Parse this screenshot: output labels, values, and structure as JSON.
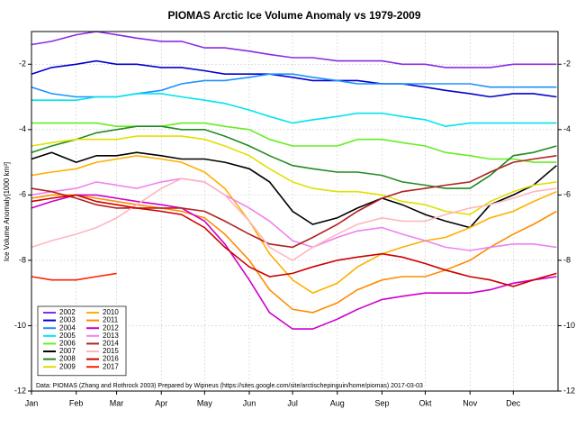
{
  "chart_data": {
    "type": "line",
    "title": "PIOMAS Arctic Ice Volume Anomaly vs 1979-2009",
    "y_label": "Ice Volume Anomaly[1000 km³]",
    "annotation": "Data: PIOMAS (Zhang and Rothrock 2003) Prepared by Wipneus (https://sites.google.com/site/arctischepinguin/home/piomas)   2017-03-03",
    "x": [
      1,
      15,
      32,
      46,
      60,
      74,
      91,
      105,
      121,
      135,
      152,
      166,
      182,
      196,
      213,
      227,
      244,
      258,
      274,
      288,
      305,
      319,
      335,
      349,
      365
    ],
    "xlim": [
      1,
      366
    ],
    "xticks": [
      {
        "value": 1,
        "label": "Jan"
      },
      {
        "value": 32,
        "label": "Feb"
      },
      {
        "value": 60,
        "label": "Mar"
      },
      {
        "value": 91,
        "label": "Apr"
      },
      {
        "value": 121,
        "label": "May"
      },
      {
        "value": 152,
        "label": "Jun"
      },
      {
        "value": 182,
        "label": "Jul"
      },
      {
        "value": 213,
        "label": "Aug"
      },
      {
        "value": 244,
        "label": "Sep"
      },
      {
        "value": 274,
        "label": "Okt"
      },
      {
        "value": 305,
        "label": "Nov"
      },
      {
        "value": 335,
        "label": "Dec"
      }
    ],
    "ylim": [
      -12,
      -1
    ],
    "yticks": [
      -12,
      -10,
      -8,
      -6,
      -4,
      -2
    ],
    "grid": true,
    "legend": "lower left",
    "series": [
      {
        "name": "2002",
        "color": "#8a2be2",
        "values": [
          -1.4,
          -1.3,
          -1.1,
          -1.0,
          -1.1,
          -1.2,
          -1.3,
          -1.3,
          -1.5,
          -1.5,
          -1.6,
          -1.7,
          -1.8,
          -1.8,
          -1.9,
          -1.9,
          -1.9,
          -2.0,
          -2.0,
          -2.1,
          -2.1,
          -2.1,
          -2.0,
          -2.0,
          -2.0
        ]
      },
      {
        "name": "2003",
        "color": "#0000cd",
        "values": [
          -2.3,
          -2.1,
          -2.0,
          -1.9,
          -2.0,
          -2.0,
          -2.1,
          -2.1,
          -2.2,
          -2.3,
          -2.3,
          -2.3,
          -2.4,
          -2.5,
          -2.5,
          -2.5,
          -2.6,
          -2.6,
          -2.7,
          -2.8,
          -2.9,
          -3.0,
          -2.9,
          -2.9,
          -3.0
        ]
      },
      {
        "name": "2004",
        "color": "#1e90ff",
        "values": [
          -2.7,
          -2.9,
          -3.0,
          -3.0,
          -3.0,
          -2.9,
          -2.8,
          -2.6,
          -2.5,
          -2.5,
          -2.4,
          -2.3,
          -2.3,
          -2.4,
          -2.5,
          -2.6,
          -2.6,
          -2.6,
          -2.6,
          -2.6,
          -2.6,
          -2.7,
          -2.7,
          -2.7,
          -2.7
        ]
      },
      {
        "name": "2005",
        "color": "#00e5ee",
        "values": [
          -3.1,
          -3.1,
          -3.1,
          -3.0,
          -3.0,
          -2.9,
          -2.9,
          -3.0,
          -3.1,
          -3.2,
          -3.4,
          -3.6,
          -3.8,
          -3.7,
          -3.6,
          -3.5,
          -3.5,
          -3.6,
          -3.7,
          -3.9,
          -3.8,
          -3.8,
          -3.8,
          -3.8,
          -3.8
        ]
      },
      {
        "name": "2006",
        "color": "#66ee22",
        "values": [
          -3.8,
          -3.8,
          -3.8,
          -3.8,
          -3.9,
          -3.9,
          -3.9,
          -3.8,
          -3.8,
          -3.9,
          -4.0,
          -4.3,
          -4.5,
          -4.5,
          -4.5,
          -4.3,
          -4.3,
          -4.4,
          -4.5,
          -4.7,
          -4.8,
          -4.9,
          -4.9,
          -5.0,
          -5.0
        ]
      },
      {
        "name": "2007",
        "color": "#000000",
        "values": [
          -4.9,
          -4.7,
          -5.0,
          -4.8,
          -4.8,
          -4.7,
          -4.8,
          -4.9,
          -4.9,
          -5.0,
          -5.2,
          -5.6,
          -6.5,
          -6.9,
          -6.7,
          -6.4,
          -6.1,
          -6.3,
          -6.6,
          -6.8,
          -7.0,
          -6.3,
          -6.0,
          -5.7,
          -5.1
        ]
      },
      {
        "name": "2008",
        "color": "#228b22",
        "values": [
          -4.7,
          -4.5,
          -4.3,
          -4.1,
          -4.0,
          -3.9,
          -3.9,
          -4.0,
          -4.0,
          -4.2,
          -4.5,
          -4.8,
          -5.1,
          -5.2,
          -5.3,
          -5.3,
          -5.4,
          -5.6,
          -5.7,
          -5.8,
          -5.8,
          -5.4,
          -4.8,
          -4.7,
          -4.5
        ]
      },
      {
        "name": "2009",
        "color": "#e0e000",
        "values": [
          -4.5,
          -4.4,
          -4.3,
          -4.3,
          -4.3,
          -4.2,
          -4.2,
          -4.2,
          -4.3,
          -4.5,
          -4.8,
          -5.2,
          -5.6,
          -5.8,
          -5.9,
          -5.9,
          -6.0,
          -6.2,
          -6.3,
          -6.5,
          -6.6,
          -6.2,
          -5.9,
          -5.7,
          -5.6
        ]
      },
      {
        "name": "2010",
        "color": "#ffb000",
        "values": [
          -5.4,
          -5.3,
          -5.2,
          -5.0,
          -4.9,
          -4.8,
          -4.9,
          -5.0,
          -5.3,
          -5.8,
          -6.8,
          -7.8,
          -8.6,
          -9.0,
          -8.7,
          -8.2,
          -7.8,
          -7.6,
          -7.4,
          -7.3,
          -7.0,
          -6.7,
          -6.5,
          -6.2,
          -5.9
        ]
      },
      {
        "name": "2011",
        "color": "#ff8c00",
        "values": [
          -6.1,
          -6.0,
          -6.0,
          -6.1,
          -6.2,
          -6.3,
          -6.4,
          -6.5,
          -6.7,
          -7.2,
          -8.0,
          -8.9,
          -9.5,
          -9.6,
          -9.3,
          -8.9,
          -8.6,
          -8.5,
          -8.5,
          -8.3,
          -8.0,
          -7.6,
          -7.2,
          -6.9,
          -6.5
        ]
      },
      {
        "name": "2012",
        "color": "#cc00cc",
        "values": [
          -6.4,
          -6.2,
          -6.0,
          -6.0,
          -6.1,
          -6.2,
          -6.3,
          -6.4,
          -6.8,
          -7.5,
          -8.6,
          -9.6,
          -10.1,
          -10.1,
          -9.8,
          -9.5,
          -9.2,
          -9.1,
          -9.0,
          -9.0,
          -9.0,
          -8.9,
          -8.7,
          -8.6,
          -8.5
        ]
      },
      {
        "name": "2013",
        "color": "#ee82ee",
        "values": [
          -6.0,
          -5.9,
          -5.8,
          -5.6,
          -5.7,
          -5.8,
          -5.6,
          -5.5,
          -5.6,
          -6.0,
          -6.4,
          -6.8,
          -7.4,
          -7.6,
          -7.3,
          -7.1,
          -7.0,
          -7.2,
          -7.4,
          -7.6,
          -7.7,
          -7.6,
          -7.5,
          -7.5,
          -7.6
        ]
      },
      {
        "name": "2014",
        "color": "#b22222",
        "values": [
          -5.8,
          -5.9,
          -6.1,
          -6.3,
          -6.4,
          -6.4,
          -6.4,
          -6.4,
          -6.5,
          -6.8,
          -7.2,
          -7.5,
          -7.6,
          -7.3,
          -6.9,
          -6.5,
          -6.1,
          -5.9,
          -5.8,
          -5.7,
          -5.6,
          -5.3,
          -5.0,
          -4.9,
          -4.8
        ]
      },
      {
        "name": "2015",
        "color": "#ffb6c1",
        "values": [
          -7.6,
          -7.4,
          -7.2,
          -7.0,
          -6.7,
          -6.3,
          -5.8,
          -5.5,
          -5.6,
          -6.0,
          -6.8,
          -7.6,
          -8.0,
          -7.6,
          -7.2,
          -6.9,
          -6.7,
          -6.8,
          -6.8,
          -6.6,
          -6.4,
          -6.3,
          -6.1,
          -5.9,
          -5.8
        ]
      },
      {
        "name": "2016",
        "color": "#cd0000",
        "values": [
          -6.2,
          -6.1,
          -6.0,
          -6.2,
          -6.3,
          -6.4,
          -6.5,
          -6.6,
          -7.0,
          -7.6,
          -8.2,
          -8.5,
          -8.4,
          -8.2,
          -8.0,
          -7.9,
          -7.8,
          -7.9,
          -8.1,
          -8.3,
          -8.5,
          -8.6,
          -8.8,
          -8.6,
          -8.4
        ]
      },
      {
        "name": "2017",
        "color": "#ff2000",
        "values": [
          -8.5,
          -8.6,
          -8.6,
          -8.5,
          -8.4,
          null,
          null,
          null,
          null,
          null,
          null,
          null,
          null,
          null,
          null,
          null,
          null,
          null,
          null,
          null,
          null,
          null,
          null,
          null,
          null
        ]
      }
    ]
  }
}
